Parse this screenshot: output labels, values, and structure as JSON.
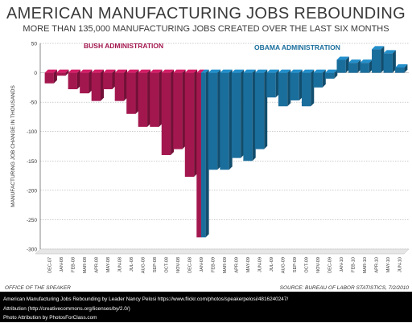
{
  "title": "AMERICAN MANUFACTURING JOBS REBOUNDING",
  "subtitle": "MORE THAN 135,000 MANUFACTURING JOBS CREATED OVER THE LAST SIX MONTHS",
  "office_label": "OFFICE OF THE SPEAKER",
  "source_label": "SOURCE: BUREAU OF LABOR STATISTICS, 7/2/2010",
  "footer": {
    "line1": "American Manufacturing Jobs Rebounding by Leader Nancy Pelosi https://www.flickr.com/photos/speakerpelosi/4816240247/",
    "line2": "Attribution (http://creativecommons.org/licenses/by/2.0/)",
    "line3": "Photo Attribution by PhotosForClass.com"
  },
  "colors": {
    "bush": "#a3174f",
    "obama": "#1a6e9c",
    "axis": "#555555",
    "grid": "#999999"
  },
  "chart_data": {
    "type": "bar",
    "ylabel": "MANUFACTURING JOB CHANGE IN THOUSANDS",
    "xlabel": "",
    "ylim": [
      -300,
      50
    ],
    "yticks": [
      50,
      0,
      -50,
      -100,
      -150,
      -200,
      -250,
      -300
    ],
    "grid": true,
    "categories": [
      "DEC-07",
      "JAN-08",
      "FEB-08",
      "MAR-08",
      "APR-08",
      "MAY-08",
      "JUN-08",
      "JUL-08",
      "AUG-08",
      "SEP-08",
      "OCT-08",
      "NOV-08",
      "DEC-08",
      "JAN-09",
      "FEB-09",
      "MAR-09",
      "APR-09",
      "MAY-09",
      "JUN-09",
      "JUL-09",
      "AUG-09",
      "SEP-09",
      "OCT-09",
      "NOV-09",
      "DEC-09",
      "JAN-10",
      "FEB-10",
      "MAR-10",
      "APR-10",
      "MAY-10",
      "JUN-10"
    ],
    "series": [
      {
        "name": "BUSH ADMINISTRATION",
        "values": [
          -18,
          -5,
          -28,
          -35,
          -48,
          -28,
          -48,
          -70,
          -92,
          -92,
          -140,
          -130,
          -177,
          -280,
          null,
          null,
          null,
          null,
          null,
          null,
          null,
          null,
          null,
          null,
          null,
          null,
          null,
          null,
          null,
          null,
          null
        ]
      },
      {
        "name": "OBAMA ADMINISTRATION",
        "values": [
          null,
          null,
          null,
          null,
          null,
          null,
          null,
          null,
          null,
          null,
          null,
          null,
          null,
          -280,
          -165,
          -165,
          -145,
          -150,
          -130,
          -42,
          -57,
          -47,
          -57,
          -25,
          -10,
          22,
          17,
          17,
          40,
          33,
          9
        ]
      }
    ]
  }
}
